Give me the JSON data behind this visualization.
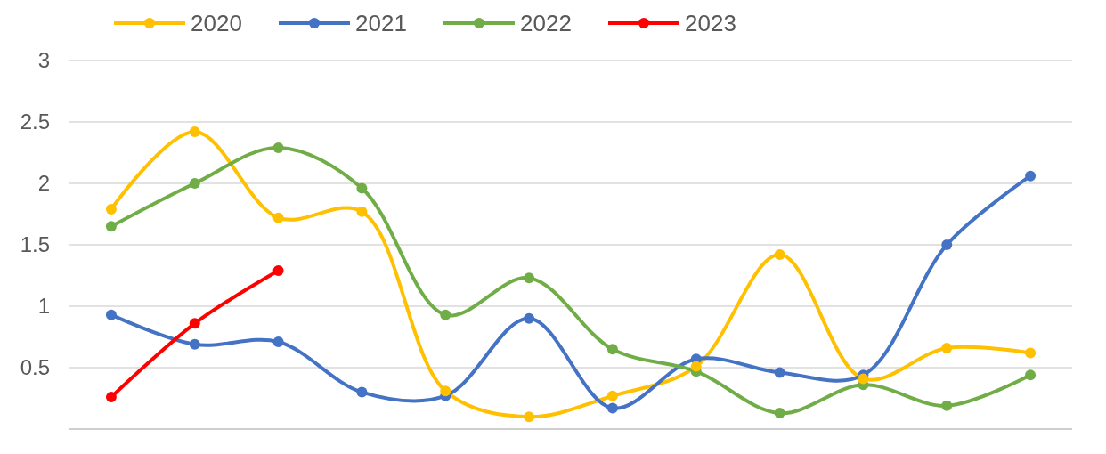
{
  "chart_data": {
    "type": "line",
    "categories": [
      null,
      null,
      null,
      null,
      null,
      null,
      null,
      null,
      null,
      null,
      null,
      null
    ],
    "series": [
      {
        "name": "2020",
        "color": "#ffc000",
        "values": [
          1.79,
          2.42,
          1.72,
          1.77,
          0.31,
          0.1,
          0.27,
          0.51,
          1.42,
          0.41,
          0.66,
          0.62
        ]
      },
      {
        "name": "2021",
        "color": "#4472c4",
        "values": [
          0.93,
          0.69,
          0.71,
          0.3,
          0.27,
          0.9,
          0.17,
          0.57,
          0.46,
          0.44,
          1.5,
          2.06
        ]
      },
      {
        "name": "2022",
        "color": "#70ad47",
        "values": [
          1.65,
          2.0,
          2.29,
          1.96,
          0.93,
          1.23,
          0.65,
          0.47,
          0.13,
          0.36,
          0.19,
          0.44
        ]
      },
      {
        "name": "2023",
        "color": "#ff0000",
        "values": [
          0.26,
          0.86,
          1.29,
          null,
          null,
          null,
          null,
          null,
          null,
          null,
          null,
          null
        ]
      }
    ],
    "ylim": [
      0,
      3
    ],
    "yticks": [
      0.5,
      1,
      1.5,
      2,
      2.5,
      3
    ],
    "grid": "y",
    "legend": "top",
    "marker": "circle",
    "line_style": "solid"
  }
}
